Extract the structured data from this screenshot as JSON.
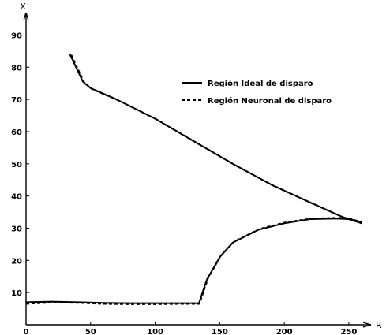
{
  "chart_data": {
    "type": "line",
    "title": "",
    "xlabel": "R",
    "ylabel": "X",
    "xlim": [
      0,
      280
    ],
    "ylim": [
      0,
      95
    ],
    "xticks": [
      0,
      50,
      100,
      150,
      200,
      250
    ],
    "yticks": [
      10,
      20,
      30,
      40,
      50,
      60,
      70,
      80,
      90
    ],
    "xtick_labels": [
      "0",
      "50",
      "100",
      "150",
      "200",
      "250"
    ],
    "ytick_labels": [
      "10",
      "20",
      "30",
      "40",
      "50",
      "60",
      "70",
      "80",
      "90"
    ],
    "legend_position": "top-right",
    "grid": false,
    "series": [
      {
        "name": "Región Ideal de disparo",
        "style": "solid",
        "color": "#000000",
        "segments": [
          [
            [
              34,
              84
            ],
            [
              44,
              75.5
            ],
            [
              50,
              73.5
            ],
            [
              70,
              70
            ],
            [
              100,
              64
            ],
            [
              130,
              57
            ],
            [
              160,
              50
            ],
            [
              190,
              43.5
            ],
            [
              220,
              38
            ],
            [
              245,
              33.5
            ],
            [
              260,
              31.5
            ]
          ],
          [
            [
              0,
              7
            ],
            [
              20,
              7.2
            ],
            [
              40,
              7
            ],
            [
              60,
              6.8
            ],
            [
              80,
              6.7
            ],
            [
              100,
              6.7
            ],
            [
              120,
              6.7
            ],
            [
              134,
              6.7
            ],
            [
              135,
              8
            ],
            [
              140,
              14
            ],
            [
              150,
              21
            ],
            [
              160,
              25.5
            ],
            [
              180,
              29.5
            ],
            [
              200,
              31.5
            ],
            [
              220,
              32.8
            ],
            [
              240,
              33
            ],
            [
              250,
              32.8
            ],
            [
              260,
              31.5
            ]
          ]
        ]
      },
      {
        "name": "Región Neuronal de disparo",
        "style": "dashed",
        "color": "#000000",
        "segments": [
          [
            [
              35,
              83.8
            ],
            [
              45,
              75.3
            ],
            [
              51,
              73.2
            ],
            [
              71,
              69.8
            ],
            [
              101,
              63.8
            ],
            [
              131,
              56.8
            ],
            [
              161,
              49.8
            ],
            [
              191,
              43.3
            ],
            [
              221,
              37.8
            ],
            [
              246,
              33.3
            ],
            [
              260,
              31.8
            ]
          ],
          [
            [
              0,
              6.5
            ],
            [
              20,
              6.9
            ],
            [
              40,
              6.8
            ],
            [
              60,
              6.5
            ],
            [
              80,
              6.4
            ],
            [
              100,
              6.4
            ],
            [
              120,
              6.5
            ],
            [
              134,
              6.5
            ],
            [
              136,
              8.5
            ],
            [
              141,
              14.5
            ],
            [
              151,
              21.5
            ],
            [
              161,
              25.8
            ],
            [
              181,
              29.8
            ],
            [
              201,
              31.8
            ],
            [
              221,
              33
            ],
            [
              241,
              33.2
            ],
            [
              251,
              33
            ],
            [
              260,
              31.8
            ]
          ]
        ]
      }
    ]
  }
}
